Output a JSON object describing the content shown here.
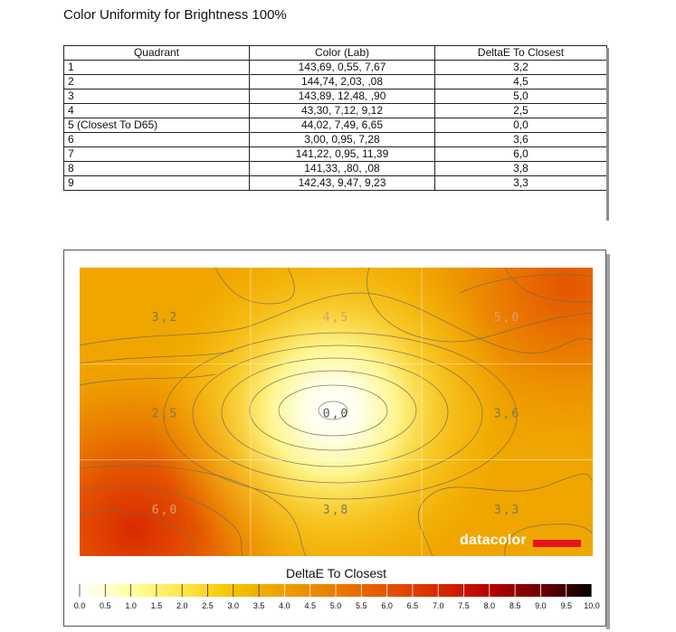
{
  "page_title": "Color Uniformity for Brightness 100%",
  "table": {
    "headers": [
      "Quadrant",
      "Color (Lab)",
      "DeltaE To Closest"
    ],
    "rows": [
      {
        "quadrant": "1",
        "lab": "143,69,  0,55,  7,67",
        "delta": "3,2"
      },
      {
        "quadrant": "2",
        "lab": "144,74,  2,03,   ,08",
        "delta": "4,5"
      },
      {
        "quadrant": "3",
        "lab": "143,89,  12,48,   ,90",
        "delta": "5,0"
      },
      {
        "quadrant": "4",
        "lab": "43,30,  7,12,  9,12",
        "delta": "2,5"
      },
      {
        "quadrant": "5 (Closest To D65)",
        "lab": "44,02,  7,49,  6,65",
        "delta": "0,0"
      },
      {
        "quadrant": "6",
        "lab": "3,00,  0,95,  7,28",
        "delta": "3,6"
      },
      {
        "quadrant": "7",
        "lab": "141,22,  0,95,  11,39",
        "delta": "6,0"
      },
      {
        "quadrant": "8",
        "lab": "141,33,   ,80,   ,08",
        "delta": "3,8"
      },
      {
        "quadrant": "9",
        "lab": "142,43,  9,47,  9,23",
        "delta": "3,3"
      }
    ]
  },
  "chart_data": {
    "type": "heatmap",
    "grid": {
      "rows": 3,
      "cols": 3
    },
    "cell_labels": [
      "3,2",
      "4,5",
      "5,0",
      "2,5",
      "0,0",
      "3,6",
      "6,0",
      "3,8",
      "3,3"
    ],
    "values": [
      3.2,
      4.5,
      5.0,
      2.5,
      0.0,
      3.6,
      6.0,
      3.8,
      3.3
    ],
    "colorbar": {
      "title": "DeltaE To Closest",
      "ticks": [
        "0.0",
        "0.5",
        "1.0",
        "1.5",
        "2.0",
        "2.5",
        "3.0",
        "3.5",
        "4.0",
        "4.5",
        "5.0",
        "5.5",
        "6.0",
        "6.5",
        "7.0",
        "7.5",
        "8.0",
        "8.5",
        "9.0",
        "9.5",
        "10.0"
      ],
      "range": [
        0,
        10
      ],
      "colors": [
        "#ffffff",
        "#ffffa0",
        "#ffe74a",
        "#f5c200",
        "#ef9e00",
        "#ea7c00",
        "#e45400",
        "#d92a00",
        "#b80000",
        "#700000",
        "#000000"
      ]
    }
  },
  "brand": {
    "name": "datacolor",
    "bar_color": "#e8141c"
  }
}
